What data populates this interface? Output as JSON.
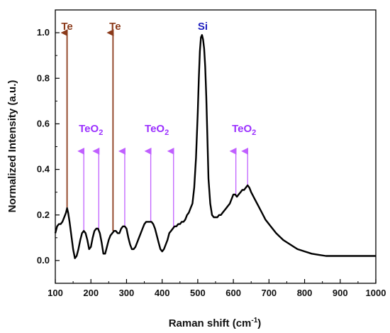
{
  "chart_data": {
    "type": "line",
    "xlabel": "Raman shift (cm",
    "xlabel_sup": "-1",
    "xlabel_close": ")",
    "ylabel": "Normalized Intensity (a.u.)",
    "xlim": [
      100,
      1000
    ],
    "ylim": [
      -0.1,
      1.1
    ],
    "xticks": [
      "100",
      "200",
      "300",
      "400",
      "500",
      "600",
      "700",
      "800",
      "900",
      "1000"
    ],
    "yticks": [
      "0.0",
      "0.2",
      "0.4",
      "0.6",
      "0.8",
      "1.0"
    ],
    "grid": false,
    "series": [
      {
        "color": "#000000",
        "x": [
          100,
          105,
          110,
          115,
          120,
          125,
          130,
          133,
          136,
          140,
          145,
          150,
          155,
          160,
          165,
          170,
          175,
          180,
          185,
          190,
          195,
          200,
          205,
          210,
          215,
          220,
          225,
          230,
          235,
          240,
          245,
          250,
          255,
          260,
          265,
          270,
          275,
          280,
          285,
          290,
          295,
          300,
          305,
          310,
          315,
          320,
          325,
          330,
          335,
          340,
          345,
          350,
          355,
          360,
          365,
          370,
          375,
          380,
          385,
          390,
          395,
          400,
          405,
          410,
          415,
          420,
          425,
          430,
          435,
          440,
          445,
          450,
          455,
          460,
          465,
          470,
          475,
          480,
          485,
          490,
          495,
          500,
          503,
          506,
          509,
          512,
          515,
          518,
          521,
          524,
          527,
          530,
          535,
          540,
          545,
          550,
          555,
          560,
          565,
          570,
          575,
          580,
          585,
          590,
          595,
          600,
          605,
          610,
          615,
          620,
          625,
          630,
          635,
          640,
          645,
          650,
          660,
          670,
          680,
          690,
          700,
          720,
          740,
          760,
          780,
          800,
          820,
          840,
          860,
          870,
          880,
          900,
          950,
          1000
        ],
        "y": [
          0.12,
          0.15,
          0.16,
          0.16,
          0.17,
          0.19,
          0.21,
          0.23,
          0.21,
          0.17,
          0.11,
          0.05,
          0.01,
          0.02,
          0.05,
          0.09,
          0.12,
          0.13,
          0.12,
          0.09,
          0.05,
          0.06,
          0.1,
          0.13,
          0.14,
          0.14,
          0.12,
          0.08,
          0.03,
          0.03,
          0.06,
          0.09,
          0.11,
          0.12,
          0.13,
          0.13,
          0.12,
          0.12,
          0.14,
          0.15,
          0.15,
          0.14,
          0.1,
          0.07,
          0.05,
          0.05,
          0.06,
          0.08,
          0.1,
          0.12,
          0.14,
          0.16,
          0.17,
          0.17,
          0.17,
          0.17,
          0.16,
          0.14,
          0.11,
          0.08,
          0.05,
          0.04,
          0.05,
          0.07,
          0.09,
          0.12,
          0.13,
          0.14,
          0.15,
          0.15,
          0.16,
          0.16,
          0.17,
          0.17,
          0.18,
          0.2,
          0.21,
          0.23,
          0.25,
          0.32,
          0.45,
          0.65,
          0.8,
          0.92,
          0.98,
          0.99,
          0.97,
          0.93,
          0.85,
          0.72,
          0.55,
          0.36,
          0.25,
          0.2,
          0.19,
          0.19,
          0.19,
          0.2,
          0.2,
          0.21,
          0.22,
          0.23,
          0.24,
          0.25,
          0.27,
          0.29,
          0.29,
          0.28,
          0.29,
          0.3,
          0.31,
          0.31,
          0.32,
          0.33,
          0.32,
          0.3,
          0.27,
          0.24,
          0.21,
          0.18,
          0.16,
          0.12,
          0.09,
          0.07,
          0.05,
          0.04,
          0.03,
          0.025,
          0.02,
          0.02,
          0.02,
          0.02,
          0.02,
          0.02
        ]
      }
    ],
    "annotations": [
      {
        "text": "Te",
        "color": "#8b3a1a",
        "x": 133,
        "y_tip": 1.0,
        "y_base": 0.23,
        "text_x": 133
      },
      {
        "text": "Te",
        "color": "#8b3a1a",
        "x": 262,
        "y_tip": 1.0,
        "y_base": 0.13,
        "text_x": 268
      },
      {
        "text": "Si",
        "color": "#2020c0",
        "x": 514,
        "text_x": 514
      }
    ],
    "teo2_labels": [
      {
        "text": "TeO",
        "sub": "2",
        "color": "#9b30ff",
        "x": 200
      },
      {
        "text": "TeO",
        "sub": "2",
        "color": "#9b30ff",
        "x": 385
      },
      {
        "text": "TeO",
        "sub": "2",
        "color": "#9b30ff",
        "x": 630
      }
    ],
    "teo2_arrows": [
      {
        "x": 180,
        "y_base": 0.13,
        "color": "#c060ff"
      },
      {
        "x": 222,
        "y_base": 0.14,
        "color": "#c060ff"
      },
      {
        "x": 295,
        "y_base": 0.15,
        "color": "#c060ff"
      },
      {
        "x": 368,
        "y_base": 0.17,
        "color": "#c060ff"
      },
      {
        "x": 432,
        "y_base": 0.14,
        "color": "#c060ff"
      },
      {
        "x": 607,
        "y_base": 0.29,
        "color": "#c060ff"
      },
      {
        "x": 640,
        "y_base": 0.33,
        "color": "#c060ff"
      }
    ],
    "teo2_arrow_tip": 0.48
  }
}
